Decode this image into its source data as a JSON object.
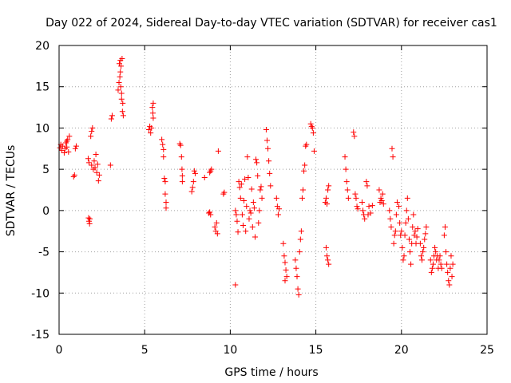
{
  "chart_data": {
    "type": "scatter",
    "title": "Day 022 of 2024, Sidereal Day-to-day VTEC variation (SDTVAR) for receiver cas1",
    "xlabel": "GPS time / hours",
    "ylabel": "SDTVAR / TECUs",
    "xlim": [
      0,
      25
    ],
    "ylim": [
      -15,
      20
    ],
    "xticks": [
      0,
      5,
      10,
      15,
      20,
      25
    ],
    "yticks": [
      -15,
      -10,
      -5,
      0,
      5,
      10,
      15,
      20
    ],
    "grid": true,
    "marker": "+",
    "color": "#ff0000",
    "series": [
      {
        "name": "SDTVAR",
        "points": [
          [
            0.05,
            7.6
          ],
          [
            0.1,
            8.0
          ],
          [
            0.15,
            7.3
          ],
          [
            0.2,
            7.8
          ],
          [
            0.3,
            7.0
          ],
          [
            0.35,
            7.5
          ],
          [
            0.4,
            8.2
          ],
          [
            0.45,
            7.7
          ],
          [
            0.5,
            8.6
          ],
          [
            0.55,
            7.1
          ],
          [
            0.6,
            9.0
          ],
          [
            0.45,
            8.4
          ],
          [
            0.85,
            4.1
          ],
          [
            0.9,
            4.3
          ],
          [
            0.95,
            7.5
          ],
          [
            1.0,
            7.8
          ],
          [
            1.7,
            6.3
          ],
          [
            1.75,
            5.8
          ],
          [
            1.72,
            -0.9
          ],
          [
            1.75,
            -1.3
          ],
          [
            1.78,
            -1.6
          ],
          [
            1.8,
            -1.0
          ],
          [
            1.85,
            9.0
          ],
          [
            1.9,
            9.6
          ],
          [
            1.95,
            10.0
          ],
          [
            1.9,
            5.5
          ],
          [
            2.0,
            5.0
          ],
          [
            2.05,
            6.0
          ],
          [
            2.1,
            5.2
          ],
          [
            2.15,
            6.8
          ],
          [
            2.2,
            4.6
          ],
          [
            2.25,
            5.6
          ],
          [
            2.3,
            3.6
          ],
          [
            2.35,
            4.3
          ],
          [
            3.05,
            11.1
          ],
          [
            3.1,
            11.5
          ],
          [
            3.0,
            5.5
          ],
          [
            3.45,
            14.6
          ],
          [
            3.5,
            15.5
          ],
          [
            3.52,
            17.8
          ],
          [
            3.55,
            16.2
          ],
          [
            3.58,
            18.2
          ],
          [
            3.6,
            15.0
          ],
          [
            3.62,
            17.5
          ],
          [
            3.65,
            14.2
          ],
          [
            3.68,
            18.4
          ],
          [
            3.7,
            12.0
          ],
          [
            3.72,
            13.0
          ],
          [
            3.75,
            11.5
          ],
          [
            3.58,
            16.8
          ],
          [
            3.65,
            13.5
          ],
          [
            5.25,
            9.8
          ],
          [
            5.3,
            10.2
          ],
          [
            5.35,
            9.4
          ],
          [
            5.4,
            10.0
          ],
          [
            5.45,
            12.5
          ],
          [
            5.5,
            13.0
          ],
          [
            5.48,
            11.8
          ],
          [
            5.5,
            11.2
          ],
          [
            6.0,
            8.6
          ],
          [
            6.05,
            8.0
          ],
          [
            6.1,
            7.4
          ],
          [
            6.1,
            6.5
          ],
          [
            6.15,
            3.9
          ],
          [
            6.2,
            3.5
          ],
          [
            6.2,
            2.0
          ],
          [
            6.25,
            1.0
          ],
          [
            6.25,
            0.3
          ],
          [
            7.05,
            8.1
          ],
          [
            7.1,
            7.9
          ],
          [
            7.15,
            6.5
          ],
          [
            7.18,
            5.0
          ],
          [
            7.2,
            4.2
          ],
          [
            7.2,
            3.5
          ],
          [
            7.75,
            2.3
          ],
          [
            7.8,
            2.8
          ],
          [
            7.85,
            3.5
          ],
          [
            7.9,
            4.8
          ],
          [
            7.95,
            4.5
          ],
          [
            8.5,
            4.0
          ],
          [
            8.8,
            4.6
          ],
          [
            8.85,
            4.8
          ],
          [
            8.9,
            5.0
          ],
          [
            8.75,
            -0.3
          ],
          [
            8.8,
            -0.2
          ],
          [
            8.85,
            -0.5
          ],
          [
            9.1,
            -2.0
          ],
          [
            9.15,
            -2.5
          ],
          [
            9.2,
            -1.5
          ],
          [
            9.25,
            -2.8
          ],
          [
            9.3,
            7.2
          ],
          [
            9.6,
            2.0
          ],
          [
            9.65,
            2.2
          ],
          [
            10.3,
            0.0
          ],
          [
            10.35,
            -0.5
          ],
          [
            10.4,
            -1.3
          ],
          [
            10.45,
            -2.6
          ],
          [
            10.5,
            3.5
          ],
          [
            10.55,
            2.8
          ],
          [
            10.6,
            1.5
          ],
          [
            10.65,
            3.2
          ],
          [
            10.7,
            -0.5
          ],
          [
            10.75,
            -1.8
          ],
          [
            10.8,
            1.2
          ],
          [
            10.85,
            3.8
          ],
          [
            10.9,
            -2.5
          ],
          [
            10.95,
            0.5
          ],
          [
            11.0,
            6.5
          ],
          [
            11.05,
            4.0
          ],
          [
            11.1,
            -1.0
          ],
          [
            11.15,
            0.0
          ],
          [
            11.2,
            -0.3
          ],
          [
            11.25,
            2.6
          ],
          [
            11.3,
            -2.0
          ],
          [
            11.35,
            1.0
          ],
          [
            11.4,
            0.3
          ],
          [
            11.45,
            -3.2
          ],
          [
            11.5,
            6.2
          ],
          [
            11.55,
            5.8
          ],
          [
            11.6,
            4.2
          ],
          [
            11.65,
            -1.5
          ],
          [
            11.7,
            0.0
          ],
          [
            11.75,
            2.5
          ],
          [
            11.8,
            2.9
          ],
          [
            11.85,
            1.5
          ],
          [
            10.3,
            -9.0
          ],
          [
            12.1,
            9.8
          ],
          [
            12.15,
            8.5
          ],
          [
            12.2,
            7.5
          ],
          [
            12.25,
            6.0
          ],
          [
            12.3,
            4.5
          ],
          [
            12.35,
            3.0
          ],
          [
            12.7,
            1.5
          ],
          [
            12.75,
            0.5
          ],
          [
            12.8,
            -0.5
          ],
          [
            12.85,
            0.2
          ],
          [
            13.1,
            -4.0
          ],
          [
            13.15,
            -5.5
          ],
          [
            13.2,
            -6.3
          ],
          [
            13.25,
            -7.2
          ],
          [
            13.3,
            -8.0
          ],
          [
            13.2,
            -8.5
          ],
          [
            13.8,
            -6.0
          ],
          [
            13.85,
            -7.0
          ],
          [
            13.9,
            -8.0
          ],
          [
            13.95,
            -9.5
          ],
          [
            14.0,
            -10.2
          ],
          [
            14.05,
            -5.0
          ],
          [
            14.1,
            -3.5
          ],
          [
            14.15,
            -2.5
          ],
          [
            14.2,
            1.5
          ],
          [
            14.25,
            2.5
          ],
          [
            14.3,
            4.8
          ],
          [
            14.35,
            5.5
          ],
          [
            14.4,
            7.8
          ],
          [
            14.45,
            8.0
          ],
          [
            14.7,
            10.5
          ],
          [
            14.75,
            10.2
          ],
          [
            14.8,
            10.0
          ],
          [
            14.85,
            9.4
          ],
          [
            14.9,
            7.2
          ],
          [
            15.6,
            -4.5
          ],
          [
            15.65,
            -5.5
          ],
          [
            15.7,
            -6.0
          ],
          [
            15.75,
            -6.5
          ],
          [
            15.55,
            1.0
          ],
          [
            15.6,
            1.5
          ],
          [
            15.65,
            0.8
          ],
          [
            15.7,
            2.5
          ],
          [
            15.75,
            3.0
          ],
          [
            16.7,
            6.5
          ],
          [
            16.75,
            5.0
          ],
          [
            16.8,
            3.5
          ],
          [
            16.85,
            2.5
          ],
          [
            16.9,
            1.5
          ],
          [
            17.2,
            9.5
          ],
          [
            17.25,
            9.0
          ],
          [
            17.3,
            2.0
          ],
          [
            17.35,
            1.5
          ],
          [
            17.4,
            0.5
          ],
          [
            17.45,
            0.2
          ],
          [
            17.7,
            1.0
          ],
          [
            17.75,
            0.0
          ],
          [
            17.8,
            -0.5
          ],
          [
            17.85,
            -1.0
          ],
          [
            17.95,
            3.5
          ],
          [
            18.0,
            3.0
          ],
          [
            18.05,
            -0.5
          ],
          [
            18.1,
            0.5
          ],
          [
            18.2,
            -0.3
          ],
          [
            18.3,
            0.6
          ],
          [
            18.7,
            2.5
          ],
          [
            18.75,
            1.0
          ],
          [
            18.8,
            1.5
          ],
          [
            18.85,
            1.2
          ],
          [
            18.9,
            2.0
          ],
          [
            18.95,
            0.8
          ],
          [
            19.3,
            0.0
          ],
          [
            19.35,
            -1.0
          ],
          [
            19.4,
            -2.0
          ],
          [
            19.45,
            7.5
          ],
          [
            19.5,
            6.5
          ],
          [
            19.55,
            -4.0
          ],
          [
            19.6,
            -3.0
          ],
          [
            19.65,
            -2.5
          ],
          [
            19.7,
            -0.5
          ],
          [
            19.75,
            1.0
          ],
          [
            19.85,
            0.5
          ],
          [
            19.9,
            -1.5
          ],
          [
            19.95,
            -3.0
          ],
          [
            20.0,
            -2.5
          ],
          [
            20.05,
            -4.5
          ],
          [
            20.1,
            -6.0
          ],
          [
            20.15,
            -5.5
          ],
          [
            20.2,
            -3.0
          ],
          [
            20.25,
            -1.5
          ],
          [
            20.3,
            0.0
          ],
          [
            20.35,
            1.5
          ],
          [
            20.4,
            -1.0
          ],
          [
            20.45,
            -3.5
          ],
          [
            20.5,
            -5.0
          ],
          [
            20.55,
            -6.5
          ],
          [
            20.6,
            -4.0
          ],
          [
            20.65,
            -2.0
          ],
          [
            20.7,
            -0.5
          ],
          [
            20.75,
            -3.0
          ],
          [
            20.8,
            -2.5
          ],
          [
            20.85,
            -4.0
          ],
          [
            20.9,
            -3.2
          ],
          [
            20.95,
            -2.2
          ],
          [
            21.1,
            -4.0
          ],
          [
            21.15,
            -5.5
          ],
          [
            21.2,
            -6.0
          ],
          [
            21.25,
            -5.0
          ],
          [
            21.3,
            -4.5
          ],
          [
            21.35,
            -3.5
          ],
          [
            21.4,
            -2.8
          ],
          [
            21.45,
            -2.0
          ],
          [
            21.7,
            -6.0
          ],
          [
            21.75,
            -7.5
          ],
          [
            21.8,
            -7.0
          ],
          [
            21.85,
            -6.5
          ],
          [
            21.9,
            -5.5
          ],
          [
            21.95,
            -4.5
          ],
          [
            22.0,
            -5.0
          ],
          [
            22.05,
            -6.0
          ],
          [
            22.1,
            -5.5
          ],
          [
            22.15,
            -7.0
          ],
          [
            22.2,
            -6.0
          ],
          [
            22.25,
            -5.5
          ],
          [
            22.3,
            -6.5
          ],
          [
            22.35,
            -7.0
          ],
          [
            22.5,
            -3.0
          ],
          [
            22.55,
            -2.0
          ],
          [
            22.6,
            -5.0
          ],
          [
            22.65,
            -6.5
          ],
          [
            22.7,
            -7.5
          ],
          [
            22.75,
            -8.5
          ],
          [
            22.8,
            -9.0
          ],
          [
            22.85,
            -7.0
          ],
          [
            22.9,
            -5.5
          ],
          [
            22.95,
            -8.0
          ],
          [
            23.0,
            -6.5
          ]
        ]
      }
    ]
  }
}
